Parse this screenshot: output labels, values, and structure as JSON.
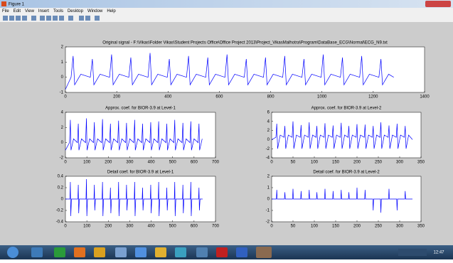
{
  "window": {
    "title": "Figure 1",
    "menu": [
      "File",
      "Edit",
      "View",
      "Insert",
      "Tools",
      "Desktop",
      "Window",
      "Help"
    ]
  },
  "chart_data": [
    {
      "type": "line",
      "title": "Original signal - F:\\Vikas\\Folder Vikas\\Student Projects Office\\Office Project 2013\\Project_VikasMalhotra\\Program\\DataBase_ECG\\Normal\\ECG_N9.txt",
      "x": [
        0,
        22,
        30,
        36,
        60,
        97,
        105,
        111,
        135,
        172,
        180,
        186,
        210,
        247,
        255,
        261,
        285,
        322,
        330,
        336,
        360,
        397,
        405,
        411,
        435,
        472,
        480,
        486,
        510,
        547,
        555,
        561,
        585,
        622,
        630,
        636,
        660,
        697,
        705,
        711,
        735,
        772,
        780,
        786,
        810,
        847,
        855,
        861,
        885,
        922,
        930,
        936,
        960,
        997,
        1005,
        1011,
        1035,
        1072,
        1080,
        1086,
        1110,
        1147,
        1155,
        1161,
        1185,
        1222,
        1230,
        1236,
        1260,
        1280
      ],
      "values": [
        -0.8,
        0,
        1.4,
        -0.5,
        0.2,
        0,
        1.2,
        -0.5,
        0.2,
        0,
        1.5,
        -0.5,
        0.2,
        0,
        1.3,
        -0.5,
        0.2,
        0,
        1.6,
        -0.5,
        0.2,
        0,
        1.2,
        -0.5,
        0.2,
        0,
        1.4,
        -0.5,
        0.2,
        0,
        1.3,
        -0.5,
        0.2,
        0,
        1.5,
        -0.5,
        0.2,
        0,
        1.2,
        -0.5,
        0.2,
        0,
        1.3,
        -0.5,
        0.2,
        0,
        1.4,
        -0.5,
        0.2,
        0,
        1.2,
        -0.5,
        0.2,
        0,
        1.5,
        -0.5,
        0.2,
        0,
        1.3,
        -0.5,
        0.2,
        0,
        1.4,
        -0.5,
        0.2,
        0,
        1.2,
        -0.5,
        0.2,
        0
      ],
      "color": "#0000ff",
      "xlim": [
        0,
        1400
      ],
      "xticks": [
        0,
        200,
        400,
        600,
        800,
        1000,
        1200,
        1400
      ],
      "ylim": [
        -1,
        2
      ],
      "yticks": [
        -1,
        0,
        1,
        2
      ]
    },
    {
      "type": "line",
      "title": "Approx. coef. for BIOR-3.9 at Level-1",
      "x": [
        0,
        19,
        23,
        26,
        38,
        56,
        60,
        63,
        75,
        94,
        98,
        101,
        113,
        131,
        135,
        138,
        150,
        169,
        173,
        176,
        188,
        206,
        210,
        213,
        225,
        244,
        248,
        251,
        263,
        281,
        285,
        288,
        300,
        319,
        323,
        326,
        338,
        356,
        360,
        363,
        375,
        394,
        398,
        401,
        413,
        431,
        435,
        438,
        450,
        469,
        473,
        476,
        488,
        506,
        510,
        513,
        525,
        544,
        548,
        551,
        563,
        581,
        585,
        588,
        600,
        619,
        623,
        626,
        638
      ],
      "values": [
        -1,
        0,
        3,
        -1,
        0.5,
        0,
        2.5,
        -1,
        0.5,
        0,
        3.2,
        -1,
        0.5,
        0,
        2.7,
        -1,
        0.5,
        0,
        3.1,
        -1,
        0.5,
        0,
        2.5,
        -1,
        0.5,
        0,
        2.9,
        -1,
        0.5,
        0,
        2.6,
        -1,
        0.5,
        0,
        3,
        -1,
        0.5,
        0,
        2.5,
        -1,
        0.5,
        0,
        2.7,
        -1,
        0.5,
        0,
        2.8,
        -1,
        0.5,
        0,
        2.5,
        -1,
        0.5,
        0,
        3,
        -1,
        0.5,
        0,
        2.6,
        -1,
        0.5,
        0,
        2.8,
        -1,
        0.5,
        0,
        2.5,
        -1,
        0.5
      ],
      "color": "#0000ff",
      "xlim": [
        0,
        700
      ],
      "xticks": [
        0,
        100,
        200,
        300,
        400,
        500,
        600,
        700
      ],
      "ylim": [
        -2,
        4
      ],
      "yticks": [
        -2,
        0,
        2,
        4
      ]
    },
    {
      "type": "line",
      "title": "Approx. coef. for BIOR-3.9 at Level-2",
      "x": [
        0,
        10,
        12,
        14,
        20,
        29,
        31,
        33,
        39,
        48,
        50,
        52,
        58,
        67,
        69,
        71,
        77,
        86,
        88,
        90,
        96,
        104,
        106,
        108,
        114,
        123,
        125,
        127,
        133,
        142,
        144,
        146,
        152,
        161,
        163,
        165,
        171,
        179,
        181,
        183,
        189,
        198,
        200,
        202,
        208,
        217,
        219,
        221,
        227,
        236,
        238,
        240,
        246,
        254,
        256,
        258,
        264,
        273,
        275,
        277,
        283,
        292,
        294,
        296,
        302,
        311,
        313,
        315,
        321,
        330
      ],
      "values": [
        0,
        0.5,
        3.5,
        -2,
        1,
        0.5,
        3,
        -2,
        1,
        0.5,
        4,
        -2,
        1,
        0.5,
        3.2,
        -2,
        1,
        0.5,
        3.8,
        -2,
        1,
        0.5,
        3,
        -2,
        1,
        0.5,
        3.6,
        -2,
        1,
        0.5,
        3.1,
        -2,
        1,
        0.5,
        3.7,
        -2,
        1,
        0.5,
        3,
        -2,
        1,
        0.5,
        3.4,
        -2,
        1,
        0.5,
        3.3,
        -2,
        1,
        0.5,
        3,
        -2,
        1,
        0.5,
        3.8,
        -2,
        1,
        0.5,
        3.1,
        -2,
        1,
        0.5,
        3.5,
        -2,
        1,
        0.5,
        3,
        -2,
        1,
        0
      ],
      "color": "#0000ff",
      "xlim": [
        0,
        350
      ],
      "xticks": [
        0,
        50,
        100,
        150,
        200,
        250,
        300,
        350
      ],
      "ylim": [
        -4,
        6
      ],
      "yticks": [
        -4,
        -2,
        0,
        2,
        4,
        6
      ]
    },
    {
      "type": "line",
      "title": "Detail coef. for BIOR-3.9 at Level-1",
      "x": [
        0,
        21,
        23,
        25,
        28,
        58,
        60,
        62,
        65,
        96,
        98,
        100,
        103,
        133,
        135,
        137,
        140,
        171,
        173,
        175,
        178,
        208,
        210,
        212,
        215,
        246,
        248,
        250,
        253,
        283,
        285,
        287,
        290,
        321,
        323,
        325,
        328,
        358,
        360,
        362,
        365,
        396,
        398,
        400,
        403,
        433,
        435,
        437,
        440,
        471,
        473,
        475,
        478,
        508,
        510,
        512,
        515,
        546,
        548,
        550,
        553,
        583,
        585,
        587,
        590,
        621,
        623,
        625,
        628,
        640
      ],
      "values": [
        0,
        0,
        0.3,
        -0.3,
        0,
        0,
        0.25,
        -0.25,
        0,
        0,
        0.35,
        -0.3,
        0,
        0,
        0.25,
        -0.2,
        0,
        0,
        0.3,
        -0.3,
        0,
        0,
        0.2,
        -0.25,
        0,
        0,
        0.3,
        -0.3,
        0,
        0,
        0.25,
        -0.2,
        0,
        0,
        0.3,
        -0.3,
        0,
        0,
        0.2,
        -0.2,
        0,
        0,
        0.25,
        -0.25,
        0,
        0,
        0.3,
        -0.3,
        0,
        0,
        0.2,
        -0.2,
        0,
        0,
        0.3,
        -0.3,
        0,
        0,
        0.25,
        -0.25,
        0,
        0,
        0.3,
        -0.3,
        0,
        0,
        0.2,
        -0.2,
        0,
        0
      ],
      "color": "#0000ff",
      "xlim": [
        0,
        700
      ],
      "xticks": [
        0,
        100,
        200,
        300,
        400,
        500,
        600,
        700
      ],
      "ylim": [
        -0.4,
        0.4
      ],
      "yticks": [
        -0.4,
        -0.2,
        0,
        0.2,
        0.4
      ]
    },
    {
      "type": "line",
      "title": "Detail coef. for BIOR-3.9 at Level-2",
      "x": [
        0,
        11,
        12,
        13,
        30,
        31,
        32,
        49,
        50,
        51,
        68,
        69,
        70,
        87,
        88,
        89,
        105,
        106,
        107,
        124,
        125,
        126,
        143,
        144,
        145,
        162,
        163,
        164,
        180,
        181,
        182,
        199,
        200,
        201,
        218,
        219,
        220,
        237,
        238,
        239,
        255,
        256,
        257,
        274,
        275,
        276,
        293,
        294,
        295,
        312,
        313,
        314,
        330
      ],
      "values": [
        0,
        0,
        0.8,
        0,
        0,
        0.6,
        0,
        0,
        0.9,
        0,
        0,
        0.7,
        0,
        0,
        0.8,
        0,
        0,
        0.6,
        0,
        0,
        0.9,
        0,
        0,
        0.7,
        0,
        0,
        0.8,
        0,
        0,
        0.6,
        0,
        0,
        1,
        0,
        0,
        0.8,
        0,
        0,
        -1,
        0,
        0,
        -1.2,
        0,
        0,
        0.9,
        0,
        0,
        -1,
        0,
        0,
        0.7,
        0,
        0
      ],
      "color": "#0000ff",
      "xlim": [
        0,
        350
      ],
      "xticks": [
        0,
        50,
        100,
        150,
        200,
        250,
        300,
        350
      ],
      "ylim": [
        -2,
        2
      ],
      "yticks": [
        -2,
        -1,
        0,
        1,
        2
      ]
    }
  ],
  "taskbar": {
    "time": "12:47"
  }
}
